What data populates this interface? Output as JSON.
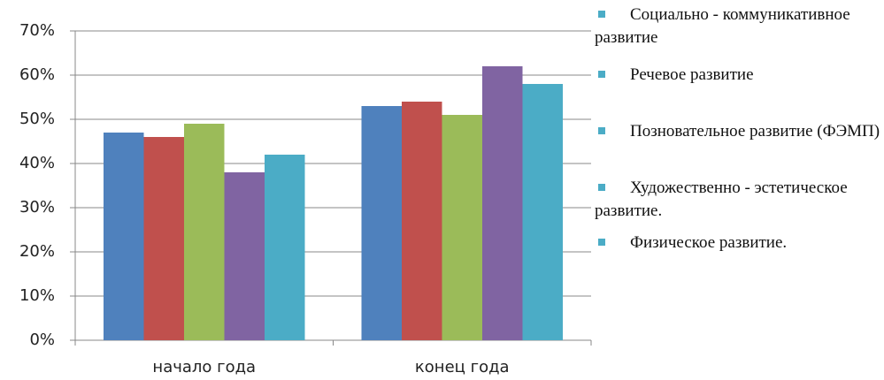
{
  "chart_data": {
    "type": "bar",
    "categories": [
      "начало года",
      "конец года"
    ],
    "series": [
      {
        "name": "Социально - коммуникативное развитие",
        "color": "#4f81bd",
        "values": [
          47,
          53
        ]
      },
      {
        "name": "Речевое развитие",
        "color": "#c0504d",
        "values": [
          46,
          54
        ]
      },
      {
        "name": "Позновательное развитие (ФЭМП)",
        "color": "#9bbb59",
        "values": [
          49,
          51
        ]
      },
      {
        "name": "Художественно - эстетическое развитие.",
        "color": "#8064a2",
        "values": [
          38,
          62
        ]
      },
      {
        "name": "Физическое развитие.",
        "color": "#4bacc6",
        "values": [
          42,
          58
        ]
      }
    ],
    "ylim": [
      0,
      70
    ],
    "yticks": [
      {
        "value": 0,
        "label": "0%"
      },
      {
        "value": 10,
        "label": "10%"
      },
      {
        "value": 20,
        "label": "20%"
      },
      {
        "value": 30,
        "label": "30%"
      },
      {
        "value": 40,
        "label": "40%"
      },
      {
        "value": 50,
        "label": "50%"
      },
      {
        "value": 60,
        "label": "60%"
      },
      {
        "value": 70,
        "label": "70%"
      }
    ],
    "grid": true,
    "legend": "right",
    "legend_marker_color": "#4bacc6"
  }
}
